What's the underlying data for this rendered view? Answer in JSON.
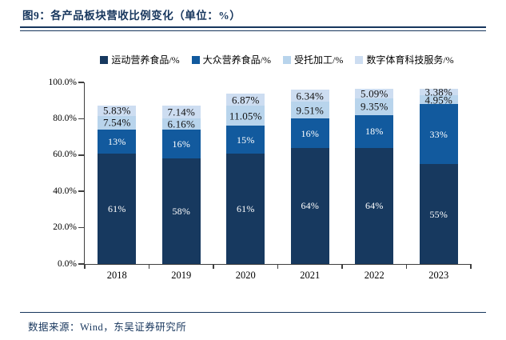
{
  "page": {
    "title": "图9：各产品板块营收比例变化（单位：%）",
    "source": "数据来源：Wind，东吴证券研究所"
  },
  "colors": {
    "title": "#17365d",
    "rule": "#17365d",
    "axis": "#3f3f3f",
    "dark_label": "#111111",
    "light_label": "#ffffff"
  },
  "chart_data": {
    "type": "bar",
    "stacked": true,
    "title": "各产品板块营收比例变化",
    "unit": "%",
    "legend_position": "top",
    "grid": false,
    "categories": [
      "2018",
      "2019",
      "2020",
      "2021",
      "2022",
      "2023"
    ],
    "series": [
      {
        "name": "运动营养食品/%",
        "color": "#17395f",
        "label_color": "#ffffff",
        "values": [
          61,
          58,
          61,
          64,
          64,
          55
        ],
        "labels": [
          "61%",
          "58%",
          "61%",
          "64%",
          "64%",
          "55%"
        ]
      },
      {
        "name": "大众营养食品/%",
        "color": "#125a9e",
        "label_color": "#ffffff",
        "values": [
          13,
          16,
          15,
          16,
          18,
          33
        ],
        "labels": [
          "13%",
          "16%",
          "15%",
          "16%",
          "18%",
          "33%"
        ]
      },
      {
        "name": "受托加工/%",
        "color": "#b8d4ec",
        "label_color": "#111111",
        "values": [
          7.54,
          6.16,
          11.05,
          9.51,
          9.35,
          4.95
        ],
        "labels": [
          "7.54%",
          "6.16%",
          "11.05%",
          "9.51%",
          "9.35%",
          "4.95%"
        ]
      },
      {
        "name": "数字体育科技服务/%",
        "color": "#cdddf1",
        "label_color": "#111111",
        "values": [
          5.83,
          7.14,
          6.87,
          6.34,
          5.09,
          3.38
        ],
        "labels": [
          "5.83%",
          "7.14%",
          "6.87%",
          "6.34%",
          "5.09%",
          "3.38%"
        ]
      }
    ],
    "y_axis": {
      "min": 0,
      "max": 100,
      "tick_step": 20,
      "tick_labels": [
        "0.0%",
        "20.0%",
        "40.0%",
        "60.0%",
        "80.0%",
        "100.0%"
      ]
    }
  }
}
